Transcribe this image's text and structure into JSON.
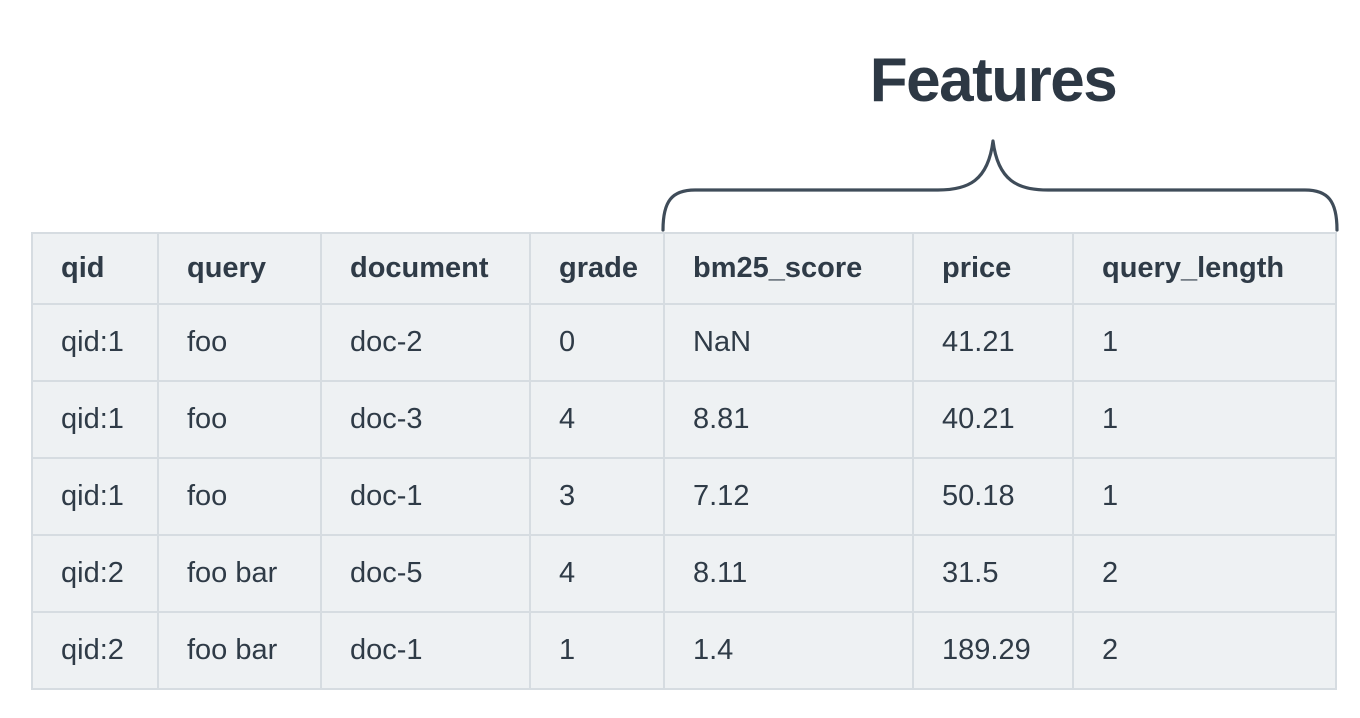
{
  "heading": {
    "label": "Features"
  },
  "table": {
    "columns": [
      "qid",
      "query",
      "document",
      "grade",
      "bm25_score",
      "price",
      "query_length"
    ],
    "feature_columns": [
      "bm25_score",
      "price",
      "query_length"
    ],
    "rows": [
      [
        "qid:1",
        "foo",
        "doc-2",
        "0",
        "NaN",
        "41.21",
        "1"
      ],
      [
        "qid:1",
        "foo",
        "doc-3",
        "4",
        "8.81",
        "40.21",
        "1"
      ],
      [
        "qid:1",
        "foo",
        "doc-1",
        "3",
        "7.12",
        "50.18",
        "1"
      ],
      [
        "qid:2",
        "foo bar",
        "doc-5",
        "4",
        "8.11",
        "31.5",
        "2"
      ],
      [
        "qid:2",
        "foo bar",
        "doc-1",
        "1",
        "1.4",
        "189.29",
        "2"
      ]
    ]
  },
  "colors": {
    "page_background": "#ffffff",
    "heading_text": "#2d3844",
    "text": "#2f3b47",
    "cell_background": "#eef1f3",
    "grid_line": "#d6dce1",
    "brace": "#3f4c59"
  }
}
